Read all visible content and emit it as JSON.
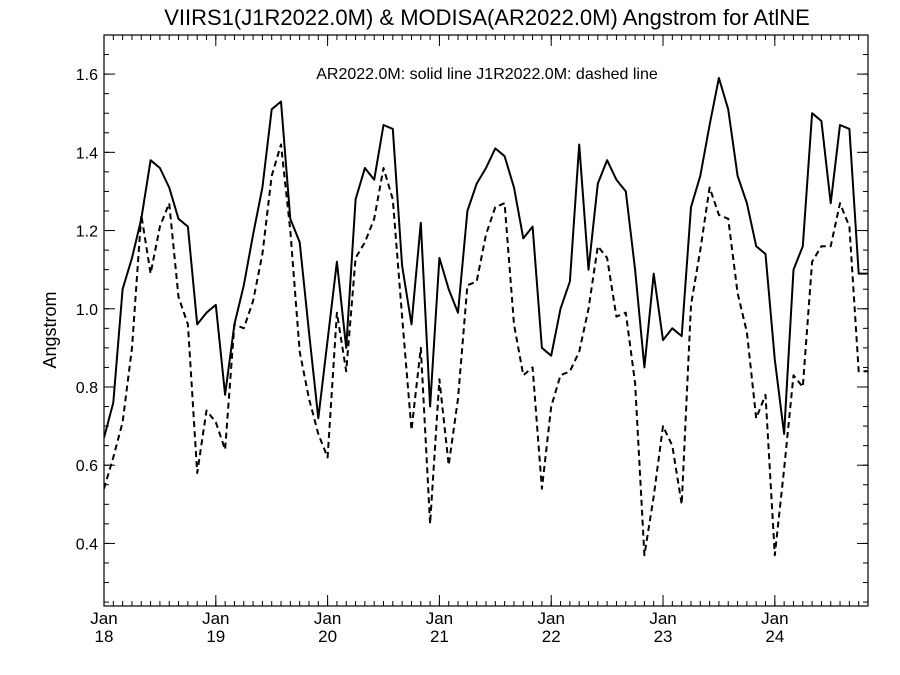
{
  "chart_data": {
    "type": "line",
    "title": "VIIRS1(J1R2022.0M) & MODISA(AR2022.0M)  Angstrom for AtlNE",
    "ylabel": "Angstrom",
    "xlabel": "",
    "annotation": "AR2022.0M: solid line   J1R2022.0M: dashed line",
    "xlim": [
      "2018-01",
      "2024-11"
    ],
    "ylim": [
      0.24,
      1.7
    ],
    "yticks": [
      0.4,
      0.6,
      0.8,
      1.0,
      1.2,
      1.4,
      1.6
    ],
    "ytick_labels": [
      "0.4",
      "0.6",
      "0.8",
      "1.0",
      "1.2",
      "1.4",
      "1.6"
    ],
    "xticks": [
      "2018-01",
      "2019-01",
      "2020-01",
      "2021-01",
      "2022-01",
      "2023-01",
      "2024-01"
    ],
    "xtick_month_labels": [
      "Jan",
      "Jan",
      "Jan",
      "Jan",
      "Jan",
      "Jan",
      "Jan"
    ],
    "xtick_year_labels": [
      "18",
      "19",
      "20",
      "21",
      "22",
      "23",
      "24"
    ],
    "grid": false,
    "x": [
      "2018-01",
      "2018-02",
      "2018-03",
      "2018-04",
      "2018-05",
      "2018-06",
      "2018-07",
      "2018-08",
      "2018-09",
      "2018-10",
      "2018-11",
      "2018-12",
      "2019-01",
      "2019-02",
      "2019-03",
      "2019-04",
      "2019-05",
      "2019-06",
      "2019-07",
      "2019-08",
      "2019-09",
      "2019-10",
      "2019-11",
      "2019-12",
      "2020-01",
      "2020-02",
      "2020-03",
      "2020-04",
      "2020-05",
      "2020-06",
      "2020-07",
      "2020-08",
      "2020-09",
      "2020-10",
      "2020-11",
      "2020-12",
      "2021-01",
      "2021-02",
      "2021-03",
      "2021-04",
      "2021-05",
      "2021-06",
      "2021-07",
      "2021-08",
      "2021-09",
      "2021-10",
      "2021-11",
      "2021-12",
      "2022-01",
      "2022-02",
      "2022-03",
      "2022-04",
      "2022-05",
      "2022-06",
      "2022-07",
      "2022-08",
      "2022-09",
      "2022-10",
      "2022-11",
      "2022-12",
      "2023-01",
      "2023-02",
      "2023-03",
      "2023-04",
      "2023-05",
      "2023-06",
      "2023-07",
      "2023-08",
      "2023-09",
      "2023-10",
      "2023-11",
      "2023-12",
      "2024-01",
      "2024-02",
      "2024-03",
      "2024-04",
      "2024-05",
      "2024-06",
      "2024-07",
      "2024-08",
      "2024-09",
      "2024-10",
      "2024-11"
    ],
    "series": [
      {
        "name": "AR2022.0M",
        "style": "solid",
        "color": "#000000",
        "values": [
          0.67,
          0.76,
          1.05,
          1.13,
          1.23,
          1.38,
          1.36,
          1.31,
          1.23,
          1.21,
          0.96,
          0.99,
          1.01,
          0.78,
          0.96,
          1.06,
          1.19,
          1.31,
          1.51,
          1.53,
          1.23,
          1.17,
          0.94,
          0.72,
          0.92,
          1.12,
          0.9,
          1.28,
          1.36,
          1.33,
          1.47,
          1.46,
          1.11,
          0.96,
          1.22,
          0.75,
          1.13,
          1.05,
          0.99,
          1.25,
          1.32,
          1.36,
          1.41,
          1.39,
          1.31,
          1.18,
          1.21,
          0.9,
          0.88,
          1.0,
          1.07,
          1.42,
          1.1,
          1.32,
          1.38,
          1.33,
          1.3,
          1.1,
          0.85,
          1.09,
          0.92,
          0.95,
          0.93,
          1.26,
          1.34,
          1.47,
          1.59,
          1.51,
          1.34,
          1.27,
          1.16,
          1.14,
          0.87,
          0.68,
          1.1,
          1.16,
          1.5,
          1.48,
          1.27,
          1.47,
          1.46,
          1.09,
          1.09
        ]
      },
      {
        "name": "J1R2022.0M",
        "style": "dashed",
        "color": "#000000",
        "values": [
          0.54,
          0.62,
          0.71,
          0.9,
          1.24,
          1.09,
          1.21,
          1.27,
          1.03,
          0.96,
          0.58,
          0.74,
          0.71,
          0.64,
          0.96,
          0.95,
          1.02,
          1.14,
          1.34,
          1.42,
          1.2,
          0.89,
          0.77,
          0.68,
          0.62,
          0.99,
          0.84,
          1.13,
          1.17,
          1.23,
          1.36,
          1.28,
          0.98,
          0.69,
          0.9,
          0.45,
          0.82,
          0.6,
          0.77,
          1.06,
          1.07,
          1.19,
          1.26,
          1.27,
          0.96,
          0.83,
          0.85,
          0.54,
          0.75,
          0.83,
          0.84,
          0.89,
          1.0,
          1.16,
          1.13,
          0.98,
          0.99,
          0.81,
          0.37,
          0.52,
          0.7,
          0.65,
          0.5,
          1.01,
          1.15,
          1.31,
          1.24,
          1.23,
          1.04,
          0.94,
          0.72,
          0.78,
          0.37,
          0.59,
          0.83,
          0.8,
          1.12,
          1.16,
          1.16,
          1.27,
          1.21,
          0.84,
          0.84
        ]
      }
    ]
  }
}
